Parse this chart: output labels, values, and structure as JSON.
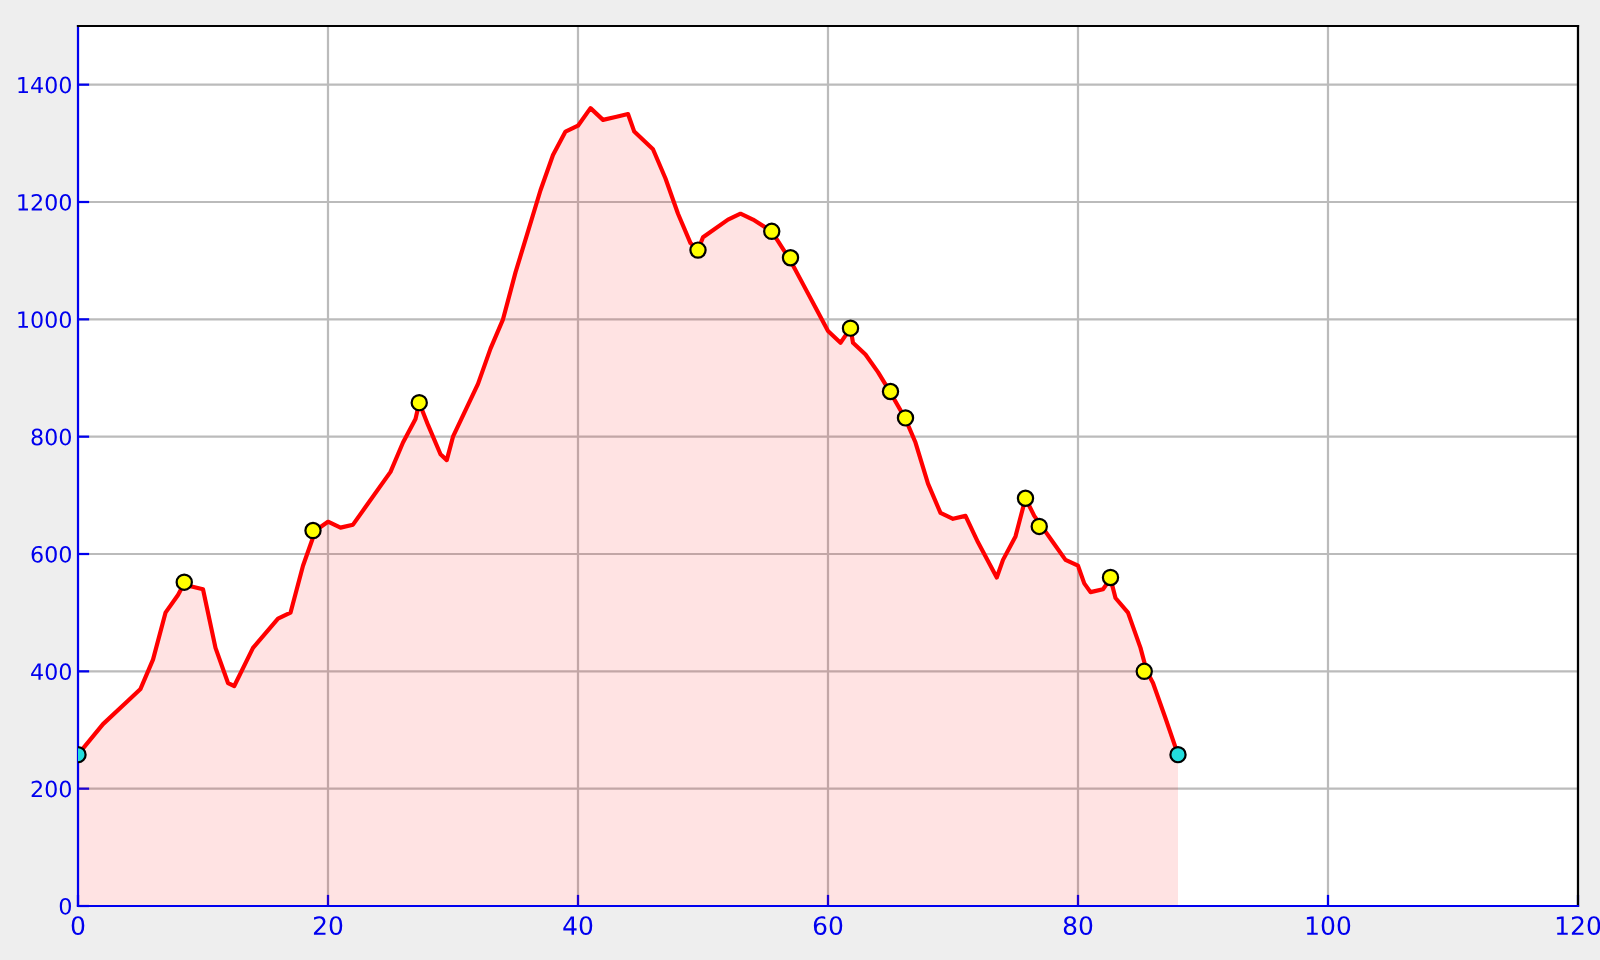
{
  "chart_data": {
    "type": "area",
    "xlim": [
      0,
      120
    ],
    "ylim": [
      0,
      1500
    ],
    "xticks": [
      0,
      20,
      40,
      60,
      80,
      100,
      120
    ],
    "yticks": [
      0,
      200,
      400,
      600,
      800,
      1000,
      1200,
      1400
    ],
    "grid": true,
    "legend": false,
    "series": [
      {
        "color": "#ff0000",
        "x": [
          0,
          2,
          4,
          5,
          6,
          7,
          8,
          8.5,
          9,
          10,
          11,
          12,
          12.5,
          14,
          16,
          17,
          18,
          19,
          20,
          21,
          22,
          23,
          25,
          26,
          27,
          27.3,
          28,
          29,
          29.5,
          30,
          32,
          33,
          34,
          35,
          36,
          37,
          38,
          39,
          40,
          41,
          42,
          43,
          44,
          44.5,
          46,
          47,
          48,
          49,
          49.6,
          50,
          52,
          53,
          54,
          55.5,
          57,
          58,
          59,
          60,
          61,
          61.8,
          62,
          63,
          64,
          65,
          66.2,
          67,
          68,
          69,
          70,
          71,
          72,
          73,
          73.5,
          74,
          75,
          75.8,
          76.5,
          77,
          78,
          79,
          80,
          80.5,
          81,
          82,
          82.6,
          83,
          84,
          85,
          85.5,
          86,
          87,
          88
        ],
        "values": [
          258,
          310,
          350,
          370,
          420,
          500,
          530,
          550,
          545,
          540,
          440,
          380,
          375,
          440,
          490,
          500,
          580,
          640,
          655,
          645,
          650,
          680,
          740,
          790,
          830,
          858,
          820,
          770,
          760,
          800,
          890,
          950,
          1000,
          1080,
          1150,
          1220,
          1280,
          1320,
          1330,
          1360,
          1340,
          1345,
          1350,
          1320,
          1290,
          1240,
          1180,
          1130,
          1118,
          1140,
          1170,
          1180,
          1170,
          1150,
          1100,
          1060,
          1020,
          980,
          960,
          985,
          960,
          940,
          910,
          875,
          830,
          790,
          720,
          670,
          660,
          665,
          620,
          580,
          560,
          590,
          630,
          695,
          665,
          650,
          620,
          590,
          580,
          550,
          535,
          540,
          558,
          525,
          500,
          440,
          400,
          380,
          320,
          258
        ]
      },
      {
        "type": "scatter",
        "color": "#ffff00",
        "marker": "circle",
        "x": [
          8.5,
          18.8,
          27.3,
          49.6,
          55.5,
          57,
          61.8,
          65,
          66.2,
          75.8,
          76.9,
          82.6,
          85.3
        ],
        "values": [
          552,
          640,
          858,
          1118,
          1150,
          1105,
          985,
          877,
          832,
          695,
          647,
          560,
          400
        ]
      },
      {
        "type": "scatter",
        "color": "#22dddd",
        "marker": "circle",
        "x": [
          0,
          88
        ],
        "values": [
          258,
          258
        ]
      }
    ]
  }
}
